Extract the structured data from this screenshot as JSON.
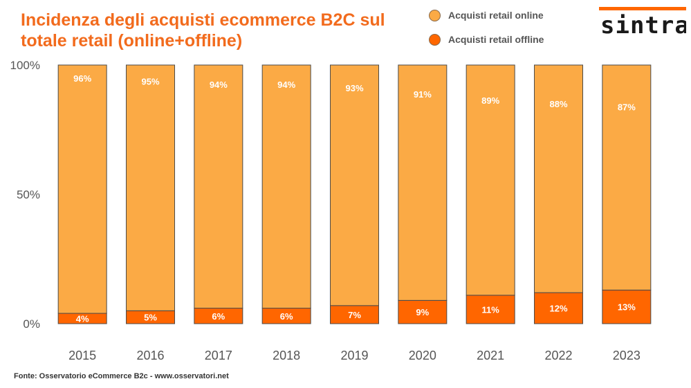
{
  "title": "Incidenza degli acquisti ecommerce B2C sul totale retail (online+offline)",
  "legend": [
    {
      "label": "Acquisti retail online",
      "color": "#fbaa45"
    },
    {
      "label": "Acquisti retail offline",
      "color": "#ff6600"
    }
  ],
  "logo": {
    "text": "sintra"
  },
  "source": "Fonte: Osservatorio eCommerce B2c - www.osservatori.net",
  "chart_data": {
    "type": "bar",
    "stacked": true,
    "categories": [
      "2015",
      "2016",
      "2017",
      "2018",
      "2019",
      "2020",
      "2021",
      "2022",
      "2023"
    ],
    "series": [
      {
        "name": "Acquisti retail offline",
        "color": "#ff6600",
        "values": [
          4,
          5,
          6,
          6,
          7,
          9,
          11,
          12,
          13
        ],
        "labels": [
          "4%",
          "5%",
          "6%",
          "6%",
          "7%",
          "9%",
          "11%",
          "12%",
          "13%"
        ]
      },
      {
        "name": "Acquisti retail online",
        "color": "#fbaa45",
        "values": [
          96,
          95,
          94,
          94,
          93,
          91,
          89,
          88,
          87
        ],
        "labels": [
          "96%",
          "95%",
          "94%",
          "94%",
          "93%",
          "91%",
          "89%",
          "88%",
          "87%"
        ]
      }
    ],
    "y_ticks": [
      "0%",
      "50%",
      "100%"
    ],
    "y_tick_values": [
      0,
      50,
      100
    ],
    "ylim": [
      0,
      100
    ],
    "grid": false,
    "legend_position": "top-right"
  }
}
